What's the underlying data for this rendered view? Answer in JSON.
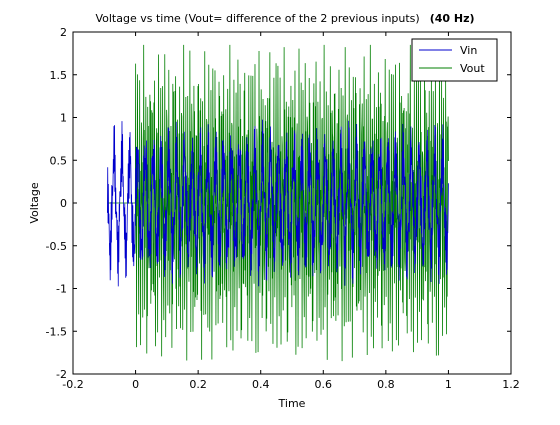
{
  "chart_data": {
    "type": "line",
    "title_main": "Voltage vs time (Vout= difference of the 2 previous inputs)",
    "title_bold": "(40 Hz)",
    "xlabel": "Time",
    "ylabel": "Voltage",
    "xlim": [
      -0.2,
      1.2
    ],
    "ylim": [
      -2,
      2
    ],
    "xticks": [
      -0.2,
      0,
      0.2,
      0.4,
      0.6,
      0.8,
      1,
      1.2
    ],
    "xtick_labels": [
      "-0.2",
      "0",
      "0.2",
      "0.4",
      "0.6",
      "0.8",
      "1",
      "1.2"
    ],
    "yticks": [
      -2,
      -1.5,
      -1,
      -0.5,
      0,
      0.5,
      1,
      1.5,
      2
    ],
    "ytick_labels": [
      "-2",
      "-1.5",
      "-1",
      "-0.5",
      "0",
      "0.5",
      "1",
      "1.5",
      "2"
    ],
    "grid": false,
    "legend_position": "top-right",
    "series": [
      {
        "name": "Vin",
        "color": "#0000cc",
        "t_start": -0.09,
        "t_end": 1.0,
        "points": 1100,
        "frequency_hz": 40,
        "approx_amplitude": 0.95
      },
      {
        "name": "Vout",
        "color": "#007f00",
        "t_start": -0.09,
        "t_end": 1.0,
        "points": 1100,
        "frequency_hz": 40,
        "approx_amplitude": 1.85
      }
    ]
  }
}
